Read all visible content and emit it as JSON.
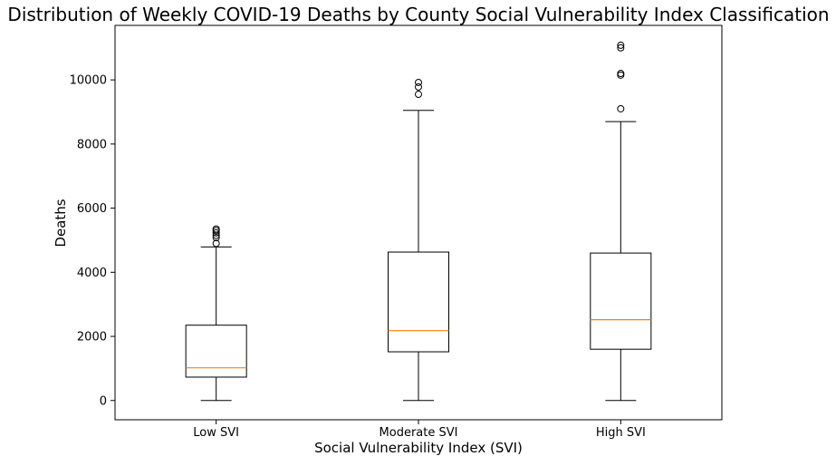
{
  "chart_data": {
    "type": "box",
    "title": "Distribution of Weekly COVID-19 Deaths by County Social Vulnerability Index Classification",
    "xlabel": "Social Vulnerability Index (SVI)",
    "ylabel": "Deaths",
    "ylim": [
      -600,
      11700
    ],
    "yticks": [
      0,
      2000,
      4000,
      6000,
      8000,
      10000
    ],
    "grid": false,
    "categories": [
      "Low SVI",
      "Moderate SVI",
      "High SVI"
    ],
    "boxes": [
      {
        "category": "Low SVI",
        "min": 0,
        "q1": 730,
        "median": 1020,
        "q3": 2350,
        "max": 4790,
        "outliers": [
          4900,
          5080,
          5150,
          5230,
          5300,
          5350
        ]
      },
      {
        "category": "Moderate SVI",
        "min": 0,
        "q1": 1520,
        "median": 2180,
        "q3": 4630,
        "max": 9050,
        "outliers": [
          9550,
          9780,
          9920
        ]
      },
      {
        "category": "High SVI",
        "min": 0,
        "q1": 1600,
        "median": 2520,
        "q3": 4600,
        "max": 8700,
        "outliers": [
          9100,
          10150,
          10200,
          11000,
          11080
        ]
      }
    ],
    "colors": {
      "box": "#000000",
      "median": "#ff7f0e",
      "outlier": "#000000"
    }
  }
}
